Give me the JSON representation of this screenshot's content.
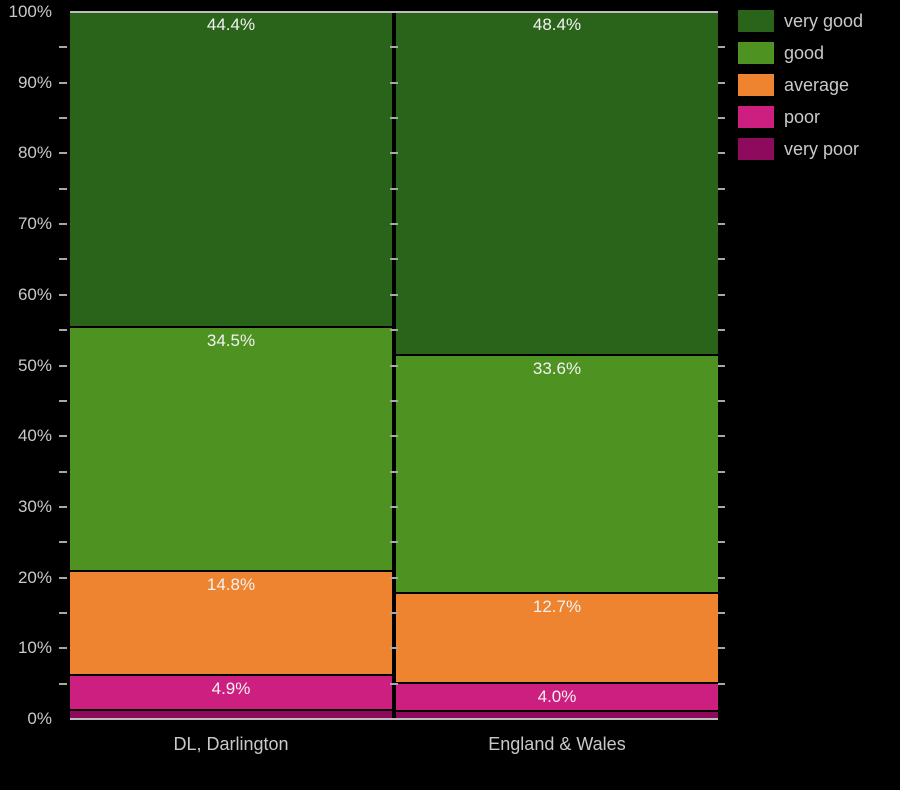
{
  "chart_data": {
    "type": "bar",
    "stacked": true,
    "title": "",
    "xlabel": "",
    "ylabel": "",
    "background": "#000000",
    "text_color": "#c9c9c9",
    "value_label_color": "#f2f2f2",
    "axis_line_color": "#bdbdbd",
    "categories": [
      "DL, Darlington",
      "England & Wales"
    ],
    "series": [
      {
        "name": "very good",
        "color": "#2a641a",
        "values": [
          44.4,
          48.4
        ]
      },
      {
        "name": "good",
        "color": "#4e9222",
        "values": [
          34.5,
          33.6
        ]
      },
      {
        "name": "average",
        "color": "#ee8330",
        "values": [
          14.8,
          12.7
        ]
      },
      {
        "name": "poor",
        "color": "#cc1f7f",
        "values": [
          4.9,
          4.0
        ]
      },
      {
        "name": "very poor",
        "color": "#8e0a5c",
        "values": [
          1.4,
          1.3
        ]
      }
    ],
    "value_label_format": "percent",
    "ylim": [
      0,
      100
    ],
    "ytick_labels": [
      "0%",
      "10%",
      "20%",
      "30%",
      "40%",
      "50%",
      "60%",
      "70%",
      "80%",
      "90%",
      "100%"
    ],
    "ytick_values": [
      0,
      10,
      20,
      30,
      40,
      50,
      60,
      70,
      80,
      90,
      100
    ],
    "minor_tick_step": 5,
    "grid": false,
    "legend_position": "top-right"
  }
}
